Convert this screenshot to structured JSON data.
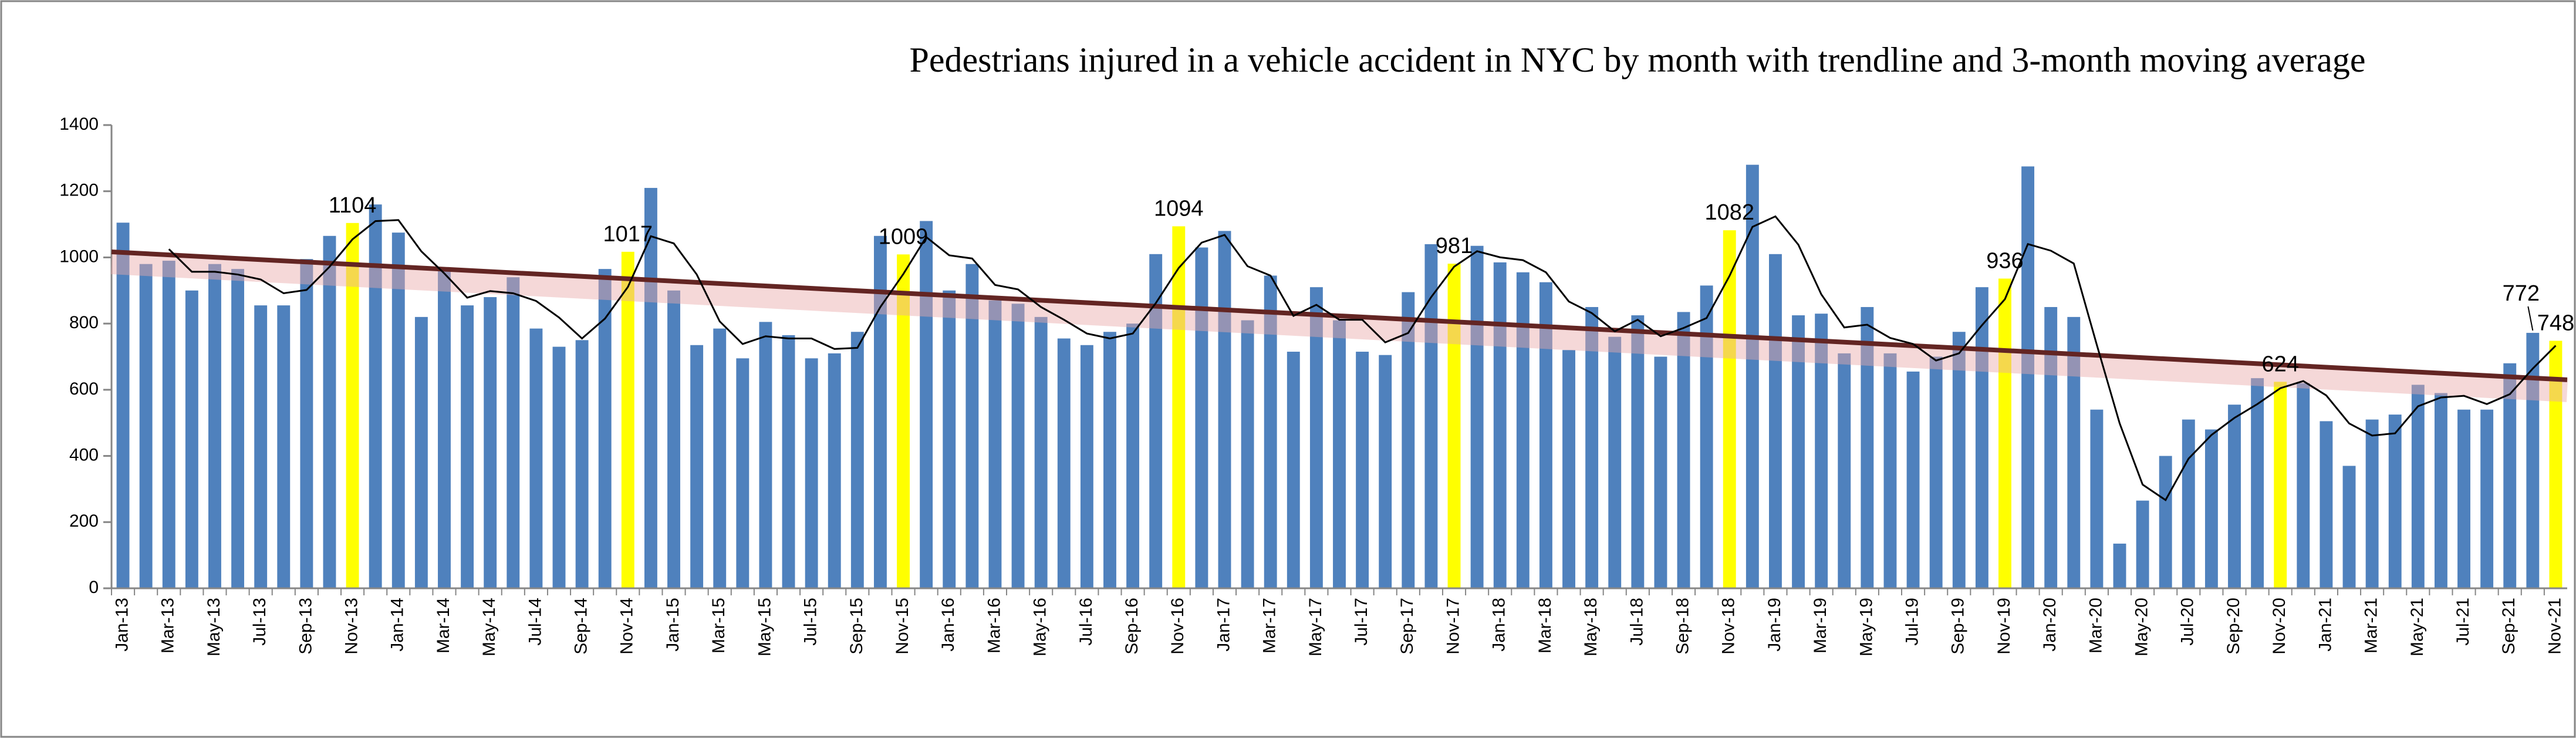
{
  "chart_data": {
    "type": "bar",
    "title": "Pedestrians injured in a vehicle accident in NYC by month with trendline and 3-month moving average",
    "categories": [
      "Jan-13",
      null,
      "Mar-13",
      null,
      "May-13",
      null,
      "Jul-13",
      null,
      "Sep-13",
      null,
      "Nov-13",
      null,
      "Jan-14",
      null,
      "Mar-14",
      null,
      "May-14",
      null,
      "Jul-14",
      null,
      "Sep-14",
      null,
      "Nov-14",
      null,
      "Jan-15",
      null,
      "Mar-15",
      null,
      "May-15",
      null,
      "Jul-15",
      null,
      "Sep-15",
      null,
      "Nov-15",
      null,
      "Jan-16",
      null,
      "Mar-16",
      null,
      "May-16",
      null,
      "Jul-16",
      null,
      "Sep-16",
      null,
      "Nov-16",
      null,
      "Jan-17",
      null,
      "Mar-17",
      null,
      "May-17",
      null,
      "Jul-17",
      null,
      "Sep-17",
      null,
      "Nov-17",
      null,
      "Jan-18",
      null,
      "Mar-18",
      null,
      "May-18",
      null,
      "Jul-18",
      null,
      "Sep-18",
      null,
      "Nov-18",
      null,
      "Jan-19",
      null,
      "Mar-19",
      null,
      "May-19",
      null,
      "Jul-19",
      null,
      "Sep-19",
      null,
      "Nov-19",
      null,
      "Jan-20",
      null,
      "Mar-20",
      null,
      "May-20",
      null,
      "Jul-20",
      null,
      "Sep-20",
      null,
      "Nov-20",
      null,
      "Jan-21",
      null,
      "Mar-21",
      null,
      "May-21",
      null,
      "Jul-21",
      null,
      "Sep-21",
      null,
      "Nov-21"
    ],
    "values": [
      1105,
      980,
      990,
      900,
      980,
      965,
      855,
      855,
      995,
      1065,
      1104,
      1160,
      1075,
      820,
      960,
      855,
      880,
      940,
      785,
      730,
      750,
      965,
      1017,
      1210,
      900,
      735,
      785,
      695,
      805,
      765,
      695,
      710,
      775,
      1065,
      1009,
      1110,
      900,
      980,
      870,
      860,
      820,
      755,
      735,
      775,
      800,
      1010,
      1094,
      1030,
      1080,
      810,
      945,
      715,
      910,
      810,
      715,
      705,
      895,
      1040,
      981,
      1035,
      985,
      955,
      925,
      720,
      850,
      760,
      825,
      700,
      835,
      915,
      1082,
      1280,
      1010,
      825,
      830,
      710,
      850,
      710,
      655,
      700,
      775,
      910,
      936,
      1275,
      850,
      820,
      540,
      135,
      265,
      400,
      510,
      480,
      555,
      635,
      624,
      620,
      505,
      370,
      510,
      525,
      615,
      590,
      540,
      540,
      680,
      772,
      748
    ],
    "value_labels": [
      null,
      null,
      null,
      null,
      null,
      null,
      null,
      null,
      null,
      null,
      "1104",
      null,
      null,
      null,
      null,
      null,
      null,
      null,
      null,
      null,
      null,
      null,
      "1017",
      null,
      null,
      null,
      null,
      null,
      null,
      null,
      null,
      null,
      null,
      null,
      "1009",
      null,
      null,
      null,
      null,
      null,
      null,
      null,
      null,
      null,
      null,
      null,
      "1094",
      null,
      null,
      null,
      null,
      null,
      null,
      null,
      null,
      null,
      null,
      null,
      "981",
      null,
      null,
      null,
      null,
      null,
      null,
      null,
      null,
      null,
      null,
      null,
      "1082",
      null,
      null,
      null,
      null,
      null,
      null,
      null,
      null,
      null,
      null,
      null,
      "936",
      null,
      null,
      null,
      null,
      null,
      null,
      null,
      null,
      null,
      null,
      null,
      "624",
      null,
      null,
      null,
      null,
      null,
      null,
      null,
      null,
      null,
      null,
      "772",
      "748"
    ],
    "colors": [
      "#4f81bd",
      "#4f81bd",
      "#4f81bd",
      "#4f81bd",
      "#4f81bd",
      "#4f81bd",
      "#4f81bd",
      "#4f81bd",
      "#4f81bd",
      "#4f81bd",
      "#ffff00",
      "#4f81bd",
      "#4f81bd",
      "#4f81bd",
      "#4f81bd",
      "#4f81bd",
      "#4f81bd",
      "#4f81bd",
      "#4f81bd",
      "#4f81bd",
      "#4f81bd",
      "#4f81bd",
      "#ffff00",
      "#4f81bd",
      "#4f81bd",
      "#4f81bd",
      "#4f81bd",
      "#4f81bd",
      "#4f81bd",
      "#4f81bd",
      "#4f81bd",
      "#4f81bd",
      "#4f81bd",
      "#4f81bd",
      "#ffff00",
      "#4f81bd",
      "#4f81bd",
      "#4f81bd",
      "#4f81bd",
      "#4f81bd",
      "#4f81bd",
      "#4f81bd",
      "#4f81bd",
      "#4f81bd",
      "#4f81bd",
      "#4f81bd",
      "#ffff00",
      "#4f81bd",
      "#4f81bd",
      "#4f81bd",
      "#4f81bd",
      "#4f81bd",
      "#4f81bd",
      "#4f81bd",
      "#4f81bd",
      "#4f81bd",
      "#4f81bd",
      "#4f81bd",
      "#ffff00",
      "#4f81bd",
      "#4f81bd",
      "#4f81bd",
      "#4f81bd",
      "#4f81bd",
      "#4f81bd",
      "#4f81bd",
      "#4f81bd",
      "#4f81bd",
      "#4f81bd",
      "#4f81bd",
      "#ffff00",
      "#4f81bd",
      "#4f81bd",
      "#4f81bd",
      "#4f81bd",
      "#4f81bd",
      "#4f81bd",
      "#4f81bd",
      "#4f81bd",
      "#4f81bd",
      "#4f81bd",
      "#4f81bd",
      "#ffff00",
      "#4f81bd",
      "#4f81bd",
      "#4f81bd",
      "#4f81bd",
      "#4f81bd",
      "#4f81bd",
      "#4f81bd",
      "#4f81bd",
      "#4f81bd",
      "#4f81bd",
      "#4f81bd",
      "#ffff00",
      "#4f81bd",
      "#4f81bd",
      "#4f81bd",
      "#4f81bd",
      "#4f81bd",
      "#4f81bd",
      "#4f81bd",
      "#4f81bd",
      "#4f81bd",
      "#4f81bd",
      "#4f81bd",
      "#ffff00"
    ],
    "trendline_color": "#632523",
    "moving_average_color": "#000000",
    "ylim": [
      0,
      1400
    ],
    "yticks": [
      0,
      200,
      400,
      600,
      800,
      1000,
      1200,
      1400
    ],
    "grid": false
  }
}
